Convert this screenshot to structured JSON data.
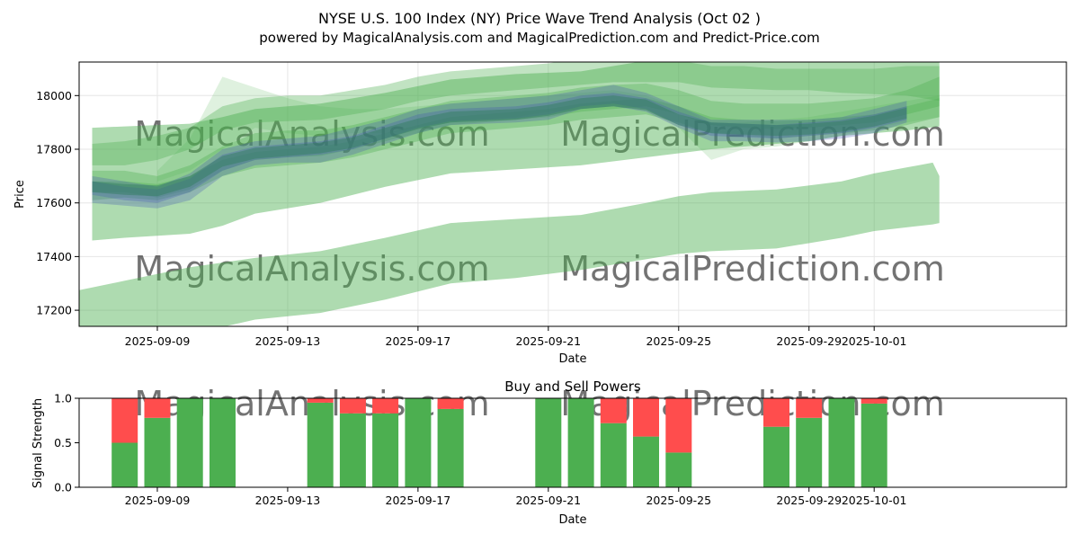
{
  "title": "NYSE U.S. 100 Index (NY) Price Wave Trend Analysis (Oct 02 )",
  "subtitle": "powered by MagicalAnalysis.com and MagicalPrediction.com and Predict-Price.com",
  "watermarks": [
    "MagicalAnalysis.com",
    "MagicalPrediction.com"
  ],
  "colors": {
    "green_band": "#4caf50",
    "blue_band": "#3f51b5",
    "buy": "#4caf50",
    "sell": "#ff4d4d",
    "grid": "#e6e6e6",
    "watermark": "#d9d9d9"
  },
  "chart_data": [
    {
      "type": "area",
      "title": "",
      "xlabel": "Date",
      "ylabel": "Price",
      "x_start": "2025-09-06",
      "x_range_days": [
        0.6,
        30.9
      ],
      "ylim": [
        17140,
        18125
      ],
      "x_ticks": [
        {
          "day": 3,
          "label": "2025-09-09"
        },
        {
          "day": 7,
          "label": "2025-09-13"
        },
        {
          "day": 11,
          "label": "2025-09-17"
        },
        {
          "day": 15,
          "label": "2025-09-21"
        },
        {
          "day": 19,
          "label": "2025-09-25"
        },
        {
          "day": 23,
          "label": "2025-09-29"
        },
        {
          "day": 25,
          "label": "2025-10-01"
        }
      ],
      "y_ticks": [
        17200,
        17400,
        17600,
        17800,
        18000
      ],
      "grid": true,
      "green_bands": [
        {
          "name": "wide-upper",
          "x": [
            1,
            2,
            4,
            5,
            6,
            8,
            10,
            12,
            14,
            16,
            18,
            20,
            22,
            23,
            24,
            25,
            26,
            27
          ],
          "lower": [
            17460,
            17470,
            17485,
            17515,
            17560,
            17600,
            17660,
            17710,
            17725,
            17740,
            17770,
            17800,
            17820,
            17830,
            17850,
            17860,
            17870,
            17885
          ],
          "upper": [
            17880,
            17885,
            17895,
            17920,
            17950,
            17970,
            18010,
            18060,
            18080,
            18090,
            18130,
            18130,
            18130,
            18140,
            18150,
            18150,
            18160,
            18170
          ]
        },
        {
          "name": "wide-lower",
          "x": [
            0.6,
            2,
            4,
            6,
            8,
            10,
            12,
            14,
            16,
            18,
            19,
            20,
            22,
            24,
            25,
            26.8,
            27
          ],
          "lower": [
            17110,
            17080,
            17110,
            17165,
            17190,
            17240,
            17300,
            17320,
            17350,
            17390,
            17410,
            17420,
            17430,
            17470,
            17495,
            17520,
            17525
          ],
          "upper": [
            17275,
            17310,
            17360,
            17395,
            17420,
            17470,
            17525,
            17540,
            17555,
            17600,
            17625,
            17640,
            17650,
            17680,
            17710,
            17750,
            17700
          ]
        },
        {
          "name": "mid-1",
          "x": [
            1,
            2,
            3,
            4,
            5,
            6,
            7,
            8,
            9,
            10,
            11,
            12,
            13,
            14,
            15,
            16,
            17,
            18,
            19,
            20,
            21,
            22,
            23,
            24,
            25,
            26,
            27
          ],
          "lower": [
            17640,
            17640,
            17620,
            17650,
            17720,
            17760,
            17770,
            17775,
            17800,
            17830,
            17860,
            17890,
            17900,
            17910,
            17920,
            17940,
            17950,
            17960,
            17930,
            17890,
            17880,
            17875,
            17880,
            17890,
            17900,
            17930,
            17960
          ],
          "upper": [
            17720,
            17720,
            17700,
            17740,
            17810,
            17860,
            17870,
            17870,
            17890,
            17920,
            17950,
            17980,
            17990,
            18000,
            18010,
            18030,
            18040,
            18045,
            18020,
            17980,
            17970,
            17970,
            17970,
            17980,
            17990,
            18020,
            18070
          ]
        },
        {
          "name": "mid-2",
          "x": [
            1,
            2,
            3,
            4,
            5,
            6,
            7,
            8,
            9,
            10,
            11,
            12,
            13,
            14,
            15,
            16,
            17,
            18,
            19,
            20,
            21,
            22,
            23,
            24,
            25,
            26,
            27
          ],
          "lower": [
            17610,
            17620,
            17610,
            17640,
            17700,
            17730,
            17740,
            17750,
            17770,
            17800,
            17830,
            17860,
            17870,
            17880,
            17890,
            17910,
            17920,
            17930,
            17900,
            17860,
            17850,
            17840,
            17850,
            17860,
            17870,
            17890,
            17920
          ],
          "upper": [
            17680,
            17680,
            17670,
            17700,
            17760,
            17790,
            17800,
            17810,
            17830,
            17860,
            17890,
            17920,
            17930,
            17940,
            17950,
            17970,
            17980,
            17990,
            17960,
            17920,
            17910,
            17905,
            17910,
            17920,
            17930,
            17960,
            17990
          ]
        },
        {
          "name": "spike",
          "x": [
            3,
            4,
            5,
            6,
            7,
            8,
            9,
            10,
            11,
            12,
            13,
            14,
            15,
            16,
            17,
            18,
            19,
            20,
            21,
            22,
            23,
            24,
            25,
            26,
            27
          ],
          "lower": [
            17680,
            17720,
            17800,
            17880,
            17860,
            17850,
            17860,
            17860,
            17880,
            17900,
            17910,
            17920,
            17940,
            17950,
            17960,
            17950,
            17880,
            17760,
            17800,
            17810,
            17830,
            17850,
            17880,
            17900,
            17920
          ],
          "upper": [
            17720,
            17840,
            18070,
            18030,
            17990,
            17960,
            17950,
            17950,
            17960,
            17970,
            17980,
            17990,
            18000,
            18010,
            18020,
            18000,
            17960,
            17900,
            17900,
            17910,
            17920,
            17940,
            17960,
            17980,
            18000
          ]
        },
        {
          "name": "upper-narrow",
          "x": [
            1,
            2,
            3,
            4,
            5,
            6,
            7,
            8,
            9,
            10,
            11,
            12,
            13,
            14,
            15,
            16,
            17,
            18,
            19,
            20,
            21,
            22,
            23,
            24,
            25,
            26,
            27
          ],
          "lower": [
            17740,
            17740,
            17760,
            17800,
            17870,
            17900,
            17905,
            17910,
            17930,
            17950,
            17980,
            18000,
            18010,
            18020,
            18030,
            18040,
            18050,
            18050,
            18050,
            18030,
            18025,
            18020,
            18020,
            18010,
            18005,
            18000,
            17980
          ],
          "upper": [
            17820,
            17830,
            17850,
            17880,
            17960,
            17990,
            18000,
            18000,
            18020,
            18040,
            18070,
            18090,
            18100,
            18110,
            18120,
            18140,
            18145,
            18140,
            18130,
            18110,
            18110,
            18100,
            18100,
            18100,
            18100,
            18110,
            18110
          ]
        }
      ],
      "blue_bands": [
        {
          "name": "blue-1",
          "x": [
            1,
            2,
            3,
            4,
            5,
            6,
            7,
            8,
            9,
            10,
            11,
            12,
            13,
            14,
            15,
            16,
            17,
            18,
            19,
            20,
            21,
            22,
            23,
            24,
            25,
            26
          ],
          "lower": [
            17600,
            17590,
            17580,
            17610,
            17700,
            17740,
            17750,
            17750,
            17780,
            17820,
            17860,
            17890,
            17895,
            17900,
            17910,
            17950,
            17960,
            17940,
            17880,
            17830,
            17830,
            17825,
            17830,
            17840,
            17860,
            17900
          ],
          "upper": [
            17700,
            17680,
            17660,
            17710,
            17800,
            17830,
            17840,
            17850,
            17880,
            17910,
            17950,
            17970,
            17980,
            17990,
            18000,
            18020,
            18040,
            18010,
            17960,
            17910,
            17910,
            17910,
            17910,
            17920,
            17950,
            17980
          ]
        },
        {
          "name": "blue-2",
          "x": [
            1,
            2,
            3,
            4,
            5,
            6,
            7,
            8,
            9,
            10,
            11,
            12,
            13,
            14,
            15,
            16,
            17,
            18,
            19,
            20,
            21,
            22,
            23,
            24,
            25,
            26
          ],
          "lower": [
            17630,
            17610,
            17600,
            17640,
            17720,
            17760,
            17770,
            17780,
            17800,
            17840,
            17880,
            17905,
            17910,
            17915,
            17930,
            17960,
            17970,
            17950,
            17890,
            17850,
            17845,
            17840,
            17850,
            17860,
            17880,
            17910
          ],
          "upper": [
            17680,
            17660,
            17650,
            17690,
            17780,
            17810,
            17820,
            17830,
            17850,
            17890,
            17930,
            17950,
            17955,
            17960,
            17975,
            18000,
            18010,
            17990,
            17940,
            17900,
            17895,
            17890,
            17900,
            17910,
            17930,
            17960
          ]
        }
      ],
      "center_band": {
        "x": [
          1,
          2,
          3,
          4,
          5,
          6,
          7,
          8,
          9,
          10,
          11,
          12,
          13,
          14,
          15,
          16,
          17,
          18,
          19,
          20,
          21,
          22,
          23,
          24,
          25,
          26
        ],
        "lower": [
          17640,
          17630,
          17625,
          17660,
          17735,
          17765,
          17775,
          17785,
          17805,
          17840,
          17875,
          17900,
          17905,
          17910,
          17925,
          17950,
          17960,
          17945,
          17890,
          17860,
          17855,
          17850,
          17855,
          17865,
          17885,
          17915
        ],
        "upper": [
          17680,
          17670,
          17665,
          17700,
          17775,
          17805,
          17815,
          17825,
          17845,
          17880,
          17915,
          17940,
          17945,
          17950,
          17965,
          17990,
          18000,
          17985,
          17930,
          17900,
          17895,
          17890,
          17895,
          17905,
          17925,
          17955
        ]
      }
    },
    {
      "type": "bar",
      "title": "Buy and Sell Powers",
      "xlabel": "Date",
      "ylabel": "Signal Strength",
      "ylim": [
        0,
        1
      ],
      "y_ticks": [
        "0.0",
        "0.5",
        "1.0"
      ],
      "x_ticks": [
        {
          "day": 3,
          "label": "2025-09-09"
        },
        {
          "day": 7,
          "label": "2025-09-13"
        },
        {
          "day": 11,
          "label": "2025-09-17"
        },
        {
          "day": 15,
          "label": "2025-09-21"
        },
        {
          "day": 19,
          "label": "2025-09-25"
        },
        {
          "day": 23,
          "label": "2025-09-29"
        },
        {
          "day": 25,
          "label": "2025-10-01"
        }
      ],
      "bars": [
        {
          "date": "2025-09-08",
          "buy": 0.5,
          "sell": 0.5
        },
        {
          "date": "2025-09-09",
          "buy": 0.78,
          "sell": 0.22
        },
        {
          "date": "2025-09-10",
          "buy": 1.0,
          "sell": 0.0
        },
        {
          "date": "2025-09-11",
          "buy": 1.0,
          "sell": 0.0
        },
        {
          "date": "2025-09-14",
          "buy": 0.95,
          "sell": 0.05
        },
        {
          "date": "2025-09-15",
          "buy": 0.83,
          "sell": 0.17
        },
        {
          "date": "2025-09-16",
          "buy": 0.83,
          "sell": 0.17
        },
        {
          "date": "2025-09-17",
          "buy": 1.0,
          "sell": 0.0
        },
        {
          "date": "2025-09-18",
          "buy": 0.88,
          "sell": 0.12
        },
        {
          "date": "2025-09-21",
          "buy": 1.0,
          "sell": 0.0
        },
        {
          "date": "2025-09-22",
          "buy": 1.0,
          "sell": 0.0
        },
        {
          "date": "2025-09-23",
          "buy": 0.72,
          "sell": 0.28
        },
        {
          "date": "2025-09-24",
          "buy": 0.57,
          "sell": 0.43
        },
        {
          "date": "2025-09-25",
          "buy": 0.39,
          "sell": 0.61
        },
        {
          "date": "2025-09-28",
          "buy": 0.68,
          "sell": 0.32
        },
        {
          "date": "2025-09-29",
          "buy": 0.78,
          "sell": 0.22
        },
        {
          "date": "2025-09-30",
          "buy": 1.0,
          "sell": 0.0
        },
        {
          "date": "2025-10-01",
          "buy": 0.94,
          "sell": 0.06
        }
      ]
    }
  ]
}
